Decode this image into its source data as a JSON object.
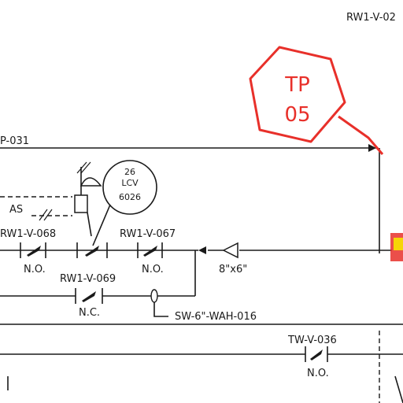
{
  "drawing": {
    "ref_top": "RW1-V-02",
    "line_left": "P-031",
    "signal_as": "AS",
    "instrument": {
      "number": "26",
      "type": "LCV",
      "tag": "6026"
    },
    "valves": [
      {
        "tag": "RW1-V-068",
        "state": "N.O."
      },
      {
        "tag": "RW1-V-067",
        "state": "N.O."
      },
      {
        "tag": "RW1-V-069",
        "state": "N.C."
      },
      {
        "tag": "TW-V-036",
        "state": "N.O."
      }
    ],
    "reducer": "8\"x6\"",
    "branch_line": "SW-6\"-WAH-016"
  },
  "markup": {
    "tp_line1": "TP",
    "tp_line2": "05",
    "color": "#e8302a",
    "highlight_color": "#f7e300"
  }
}
